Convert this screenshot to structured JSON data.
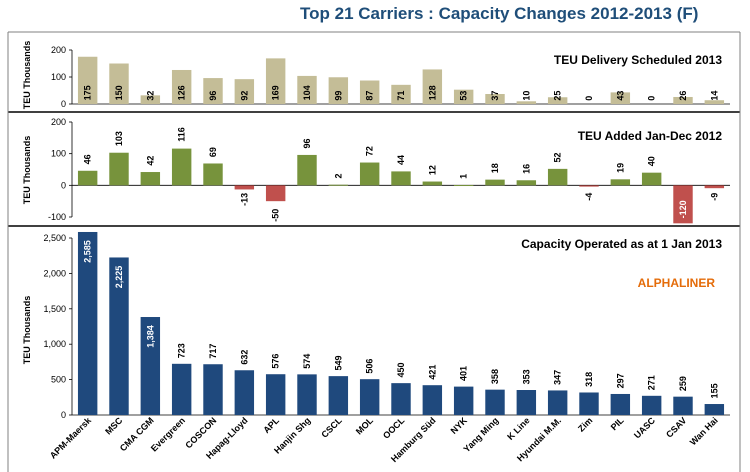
{
  "title": "Top 21 Carriers : Capacity Changes 2012-2013 (F)",
  "brand": "ALPHALINER",
  "colors": {
    "delivery": "#c4bd97",
    "added_pos": "#77933c",
    "added_neg": "#c0504d",
    "capacity": "#1f497d"
  },
  "chart_data": [
    {
      "type": "bar",
      "title": "TEU Delivery Scheduled 2013",
      "ylabel": "TEU Thousands",
      "ylim": [
        0,
        200
      ],
      "yticks": [
        "0",
        "100",
        "200"
      ],
      "categories": [
        "APM-Maersk",
        "MSC",
        "CMA CGM",
        "Evergreen",
        "COSCON",
        "Hapag-Lloyd",
        "APL",
        "Hanjin Shg",
        "CSCL",
        "MOL",
        "OOCL",
        "Hamburg Süd",
        "NYK",
        "Yang Ming",
        "K Line",
        "Hyundai M.M.",
        "Zim",
        "PIL",
        "UASC",
        "CSAV",
        "Wan Hai"
      ],
      "values": [
        175,
        150,
        32,
        126,
        96,
        92,
        169,
        104,
        99,
        87,
        71,
        128,
        53,
        37,
        10,
        25,
        0,
        43,
        0,
        26,
        14
      ],
      "labels": [
        "175",
        "150",
        "32",
        "126",
        "96",
        "92",
        "169",
        "104",
        "99",
        "87",
        "71",
        "128",
        "53",
        "37",
        "10",
        "25",
        "0",
        "43",
        "0",
        "26",
        "14"
      ]
    },
    {
      "type": "bar",
      "title": "TEU Added Jan-Dec 2012",
      "ylabel": "TEU Thousands",
      "ylim": [
        -100,
        200
      ],
      "yticks": [
        "-100",
        "0",
        "100",
        "200"
      ],
      "categories": [
        "APM-Maersk",
        "MSC",
        "CMA CGM",
        "Evergreen",
        "COSCON",
        "Hapag-Lloyd",
        "APL",
        "Hanjin Shg",
        "CSCL",
        "MOL",
        "OOCL",
        "Hamburg Süd",
        "NYK",
        "Yang Ming",
        "K Line",
        "Hyundai M.M.",
        "Zim",
        "PIL",
        "UASC",
        "CSAV",
        "Wan Hai"
      ],
      "values": [
        46,
        103,
        42,
        116,
        69,
        -13,
        -50,
        96,
        2,
        72,
        44,
        12,
        1,
        18,
        16,
        52,
        -4,
        19,
        40,
        -120,
        -9
      ],
      "labels": [
        "46",
        "103",
        "42",
        "116",
        "69",
        "-13",
        "-50",
        "96",
        "2",
        "72",
        "44",
        "12",
        "1",
        "18",
        "16",
        "52",
        "-4",
        "19",
        "40",
        "-120",
        "-9"
      ]
    },
    {
      "type": "bar",
      "title": "Capacity Operated as at 1 Jan 2013",
      "ylabel": "TEU Thousands",
      "ylim": [
        0,
        2500
      ],
      "yticks": [
        "0",
        "500",
        "1,000",
        "1,500",
        "2,000",
        "2,500"
      ],
      "categories": [
        "APM-Maersk",
        "MSC",
        "CMA CGM",
        "Evergreen",
        "COSCON",
        "Hapag-Lloyd",
        "APL",
        "Hanjin Shg",
        "CSCL",
        "MOL",
        "OOCL",
        "Hamburg Süd",
        "NYK",
        "Yang Ming",
        "K Line",
        "Hyundai M.M.",
        "Zim",
        "PIL",
        "UASC",
        "CSAV",
        "Wan Hai"
      ],
      "values": [
        2585,
        2225,
        1384,
        723,
        717,
        632,
        576,
        574,
        549,
        506,
        450,
        421,
        401,
        358,
        353,
        347,
        318,
        297,
        271,
        259,
        155
      ],
      "labels": [
        "2,585",
        "2,225",
        "1,384",
        "723",
        "717",
        "632",
        "576",
        "574",
        "549",
        "506",
        "450",
        "421",
        "401",
        "358",
        "353",
        "347",
        "318",
        "297",
        "271",
        "259",
        "155"
      ]
    }
  ]
}
